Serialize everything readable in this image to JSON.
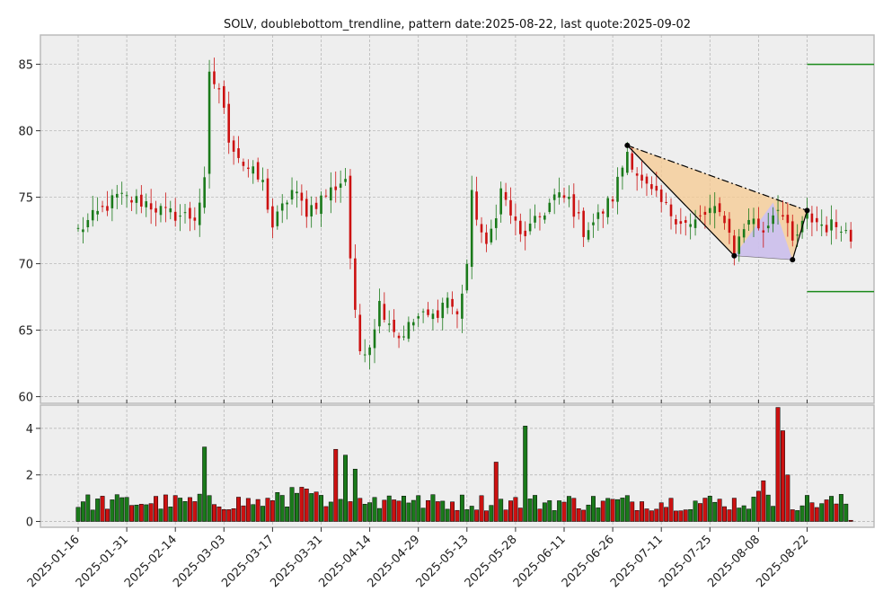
{
  "chart_data": {
    "type": "candlestick",
    "title": "SOLV, doublebottom_trendline, pattern date:2025-08-22, last quote:2025-09-02",
    "price_ylim": [
      59.5,
      87.2
    ],
    "price_yticks": [
      60,
      65,
      70,
      75,
      80,
      85
    ],
    "volume_ylim": [
      -0.25,
      5.0
    ],
    "volume_yticks": [
      0,
      2,
      4
    ],
    "x_tick_labels": [
      "2025-01-16",
      "2025-01-31",
      "2025-02-14",
      "2025-03-03",
      "2025-03-17",
      "2025-03-31",
      "2025-04-14",
      "2025-04-29",
      "2025-05-13",
      "2025-05-28",
      "2025-06-11",
      "2025-06-26",
      "2025-07-11",
      "2025-07-25",
      "2025-08-08",
      "2025-08-22"
    ],
    "x_tick_index": [
      0,
      10,
      20,
      30,
      40,
      50,
      60,
      70,
      80,
      90,
      100,
      110,
      120,
      130,
      140,
      150
    ],
    "num_bars": 160,
    "grid": true,
    "colors": {
      "up": "#1a7a1a",
      "down": "#cc1111",
      "background": "#eeeeee",
      "grid": "#b0b0b0",
      "frame": "#bbbbbb",
      "level_line": "#1a8a1a",
      "triangle_fill": "#f5c990",
      "inner_fill": "#c8c0f8"
    },
    "key_points": [
      {
        "date": "2025-07-03",
        "index": 113,
        "price": 78.9
      },
      {
        "date": "2025-07-30",
        "index": 135,
        "price": 70.6
      },
      {
        "date": "2025-08-14",
        "index": 147,
        "price": 70.3
      },
      {
        "date": "2025-08-22",
        "index": 150,
        "price": 74.0
      }
    ],
    "level_lines": [
      85.0,
      67.9
    ],
    "anchors": [
      {
        "i": 0,
        "p": 72.5
      },
      {
        "i": 8,
        "p": 75.0
      },
      {
        "i": 14,
        "p": 74.6
      },
      {
        "i": 18,
        "p": 73.8
      },
      {
        "i": 24,
        "p": 73.5
      },
      {
        "i": 26,
        "p": 76.0
      },
      {
        "i": 27,
        "p": 84.0
      },
      {
        "i": 29,
        "p": 83.2
      },
      {
        "i": 31,
        "p": 79.5
      },
      {
        "i": 34,
        "p": 77.5
      },
      {
        "i": 38,
        "p": 76.0
      },
      {
        "i": 40,
        "p": 72.8
      },
      {
        "i": 44,
        "p": 75.5
      },
      {
        "i": 47,
        "p": 74.0
      },
      {
        "i": 52,
        "p": 75.5
      },
      {
        "i": 55,
        "p": 76.5
      },
      {
        "i": 56,
        "p": 70.5
      },
      {
        "i": 57,
        "p": 66.0
      },
      {
        "i": 58,
        "p": 63.5
      },
      {
        "i": 60,
        "p": 64.0
      },
      {
        "i": 62,
        "p": 67.0
      },
      {
        "i": 66,
        "p": 64.5
      },
      {
        "i": 70,
        "p": 66.0
      },
      {
        "i": 73,
        "p": 66.0
      },
      {
        "i": 76,
        "p": 67.5
      },
      {
        "i": 78,
        "p": 66.0
      },
      {
        "i": 80,
        "p": 70.0
      },
      {
        "i": 81,
        "p": 75.0
      },
      {
        "i": 84,
        "p": 71.0
      },
      {
        "i": 87,
        "p": 75.5
      },
      {
        "i": 91,
        "p": 72.0
      },
      {
        "i": 94,
        "p": 73.0
      },
      {
        "i": 98,
        "p": 75.0
      },
      {
        "i": 101,
        "p": 74.8
      },
      {
        "i": 104,
        "p": 72.5
      },
      {
        "i": 107,
        "p": 73.5
      },
      {
        "i": 110,
        "p": 75.0
      },
      {
        "i": 113,
        "p": 78.5
      },
      {
        "i": 116,
        "p": 76.0
      },
      {
        "i": 122,
        "p": 73.8
      },
      {
        "i": 126,
        "p": 72.8
      },
      {
        "i": 130,
        "p": 74.0
      },
      {
        "i": 133,
        "p": 73.5
      },
      {
        "i": 135,
        "p": 71.0
      },
      {
        "i": 138,
        "p": 73.5
      },
      {
        "i": 141,
        "p": 72.5
      },
      {
        "i": 144,
        "p": 74.5
      },
      {
        "i": 147,
        "p": 71.5
      },
      {
        "i": 150,
        "p": 73.5
      },
      {
        "i": 154,
        "p": 72.8
      },
      {
        "i": 157,
        "p": 73.0
      },
      {
        "i": 159,
        "p": 71.8
      }
    ],
    "volume_spikes": [
      {
        "i": 26,
        "v": 3.2,
        "up": true
      },
      {
        "i": 53,
        "v": 3.1,
        "up": false
      },
      {
        "i": 55,
        "v": 2.85,
        "up": true
      },
      {
        "i": 57,
        "v": 2.25,
        "up": true
      },
      {
        "i": 86,
        "v": 2.55,
        "up": false
      },
      {
        "i": 92,
        "v": 4.1,
        "up": true
      },
      {
        "i": 144,
        "v": 4.9,
        "up": false
      },
      {
        "i": 145,
        "v": 3.9,
        "up": false
      },
      {
        "i": 146,
        "v": 2.0,
        "up": false
      },
      {
        "i": 141,
        "v": 1.75,
        "up": false
      },
      {
        "i": 140,
        "v": 1.3,
        "up": false
      }
    ]
  }
}
